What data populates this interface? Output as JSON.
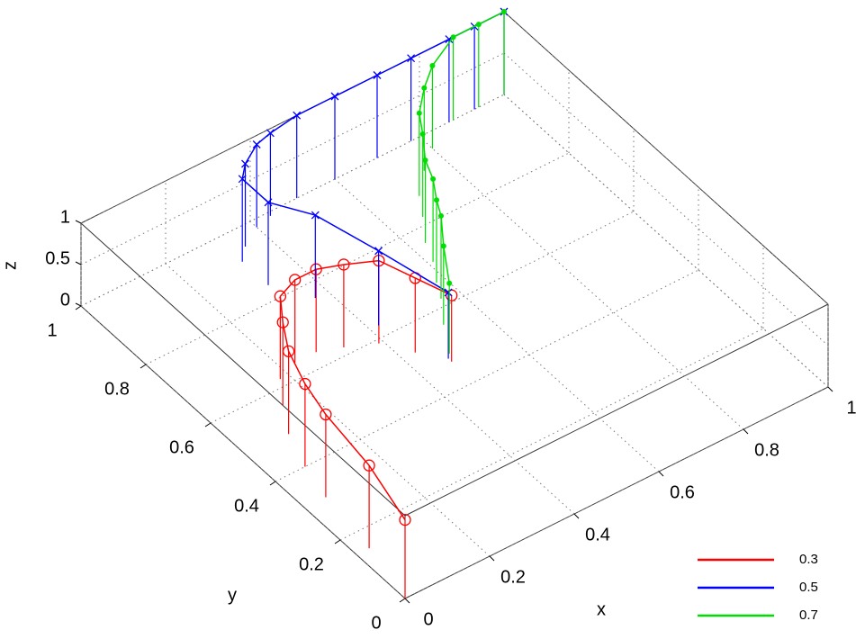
{
  "chart_data": {
    "type": "stem3",
    "x_label": "x",
    "y_label": "y",
    "z_label": "z",
    "xlim": [
      0,
      1
    ],
    "ylim": [
      0,
      1
    ],
    "zlim": [
      0,
      1
    ],
    "xticks": [
      0,
      0.2,
      0.4,
      0.6,
      0.8,
      1
    ],
    "yticks": [
      0,
      0.2,
      0.4,
      0.6,
      0.8,
      1
    ],
    "zticks": [
      0,
      0.5,
      1
    ],
    "grid": true,
    "legend": "lower right",
    "series": [
      {
        "name": "0.3",
        "color": "#ff0000",
        "marker": "o",
        "x": [
          0,
          0.03,
          0.05,
          0.07,
          0.1,
          0.14,
          0.18,
          0.23,
          0.28,
          0.33,
          0.39,
          0.43,
          0.47
        ],
        "y": [
          0,
          0.15,
          0.31,
          0.4,
          0.49,
          0.56,
          0.62,
          0.64,
          0.64,
          0.62,
          0.59,
          0.53,
          0.47
        ],
        "z": [
          0.95,
          1,
          1,
          1,
          1,
          1,
          1,
          1,
          1,
          1,
          1,
          0.9,
          0.8
        ]
      },
      {
        "name": "0.5",
        "color": "#0000ff",
        "marker": "x",
        "x": [
          1,
          0.93,
          0.87,
          0.78,
          0.7,
          0.6,
          0.51,
          0.44,
          0.4,
          0.35,
          0.32,
          0.32,
          0.37,
          0.42,
          0.47
        ],
        "y": [
          1,
          1,
          1,
          1,
          1,
          1,
          1,
          0.99,
          0.98,
          0.95,
          0.92,
          0.84,
          0.76,
          0.63,
          0.48
        ],
        "z": [
          1,
          1,
          1,
          1,
          1,
          1,
          1,
          1,
          1,
          1,
          1,
          1,
          1,
          0.9,
          0.8
        ]
      },
      {
        "name": "0.7",
        "color": "#00dd00",
        "marker": ".",
        "x": [
          1,
          0.94,
          0.88,
          0.8,
          0.75,
          0.7,
          0.67,
          0.63,
          0.61,
          0.58,
          0.56,
          0.52,
          0.48
        ],
        "y": [
          1,
          1,
          1,
          0.96,
          0.92,
          0.87,
          0.82,
          0.76,
          0.71,
          0.66,
          0.62,
          0.56,
          0.49
        ],
        "z": [
          1,
          1,
          1,
          1,
          1,
          1,
          1,
          1,
          1,
          1,
          1,
          0.95,
          0.85
        ]
      }
    ]
  }
}
